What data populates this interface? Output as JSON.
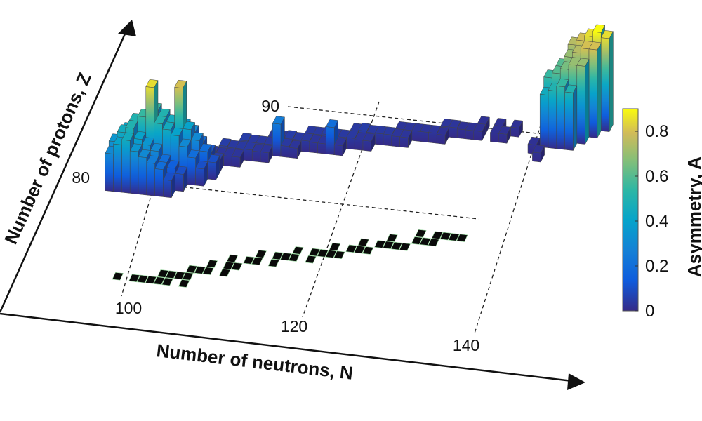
{
  "chart_data": {
    "type": "bar3d",
    "xlabel": "Number of neutrons, N",
    "ylabel": "Number of protons, Z",
    "zlabel": "Asymmetry, A",
    "x_ticks": [
      100,
      120,
      140
    ],
    "y_ticks": [
      80,
      90
    ],
    "colorbar": {
      "label": "Asymmetry, A",
      "ticks": [
        "0",
        "0.2",
        "0.4",
        "0.6",
        "0.8"
      ],
      "range": [
        0,
        0.9
      ],
      "colormap": "parula"
    },
    "bars": [
      {
        "N": 99,
        "Z": 78,
        "A": 0.3
      },
      {
        "N": 100,
        "Z": 78,
        "A": 0.4
      },
      {
        "N": 101,
        "Z": 78,
        "A": 0.45
      },
      {
        "N": 102,
        "Z": 78,
        "A": 0.35
      },
      {
        "N": 103,
        "Z": 78,
        "A": 0.3
      },
      {
        "N": 104,
        "Z": 78,
        "A": 0.25
      },
      {
        "N": 105,
        "Z": 78,
        "A": 0.2
      },
      {
        "N": 106,
        "Z": 78,
        "A": 0.1
      },
      {
        "N": 99,
        "Z": 79,
        "A": 0.35
      },
      {
        "N": 100,
        "Z": 79,
        "A": 0.45
      },
      {
        "N": 101,
        "Z": 79,
        "A": 0.5
      },
      {
        "N": 102,
        "Z": 79,
        "A": 0.4
      },
      {
        "N": 103,
        "Z": 79,
        "A": 0.35
      },
      {
        "N": 104,
        "Z": 79,
        "A": 0.3
      },
      {
        "N": 105,
        "Z": 79,
        "A": 0.2
      },
      {
        "N": 106,
        "Z": 79,
        "A": 0.15
      },
      {
        "N": 107,
        "Z": 79,
        "A": 0.1
      },
      {
        "N": 100,
        "Z": 80,
        "A": 0.4
      },
      {
        "N": 101,
        "Z": 80,
        "A": 0.5
      },
      {
        "N": 102,
        "Z": 80,
        "A": 0.55
      },
      {
        "N": 103,
        "Z": 80,
        "A": 0.85
      },
      {
        "N": 104,
        "Z": 80,
        "A": 0.5
      },
      {
        "N": 105,
        "Z": 80,
        "A": 0.45
      },
      {
        "N": 106,
        "Z": 80,
        "A": 0.4
      },
      {
        "N": 107,
        "Z": 80,
        "A": 0.3
      },
      {
        "N": 108,
        "Z": 80,
        "A": 0.2
      },
      {
        "N": 109,
        "Z": 80,
        "A": 0.1
      },
      {
        "N": 102,
        "Z": 81,
        "A": 0.45
      },
      {
        "N": 103,
        "Z": 81,
        "A": 0.55
      },
      {
        "N": 104,
        "Z": 81,
        "A": 0.5
      },
      {
        "N": 105,
        "Z": 81,
        "A": 0.45
      },
      {
        "N": 106,
        "Z": 81,
        "A": 0.8
      },
      {
        "N": 107,
        "Z": 81,
        "A": 0.4
      },
      {
        "N": 108,
        "Z": 81,
        "A": 0.3
      },
      {
        "N": 109,
        "Z": 81,
        "A": 0.2
      },
      {
        "N": 110,
        "Z": 81,
        "A": 0.1
      },
      {
        "N": 104,
        "Z": 82,
        "A": 0.35
      },
      {
        "N": 105,
        "Z": 82,
        "A": 0.3
      },
      {
        "N": 106,
        "Z": 82,
        "A": 0.35
      },
      {
        "N": 107,
        "Z": 82,
        "A": 0.3
      },
      {
        "N": 108,
        "Z": 82,
        "A": 0.2
      },
      {
        "N": 109,
        "Z": 82,
        "A": 0.12
      },
      {
        "N": 110,
        "Z": 82,
        "A": 0.05
      },
      {
        "N": 108,
        "Z": 83,
        "A": 0.04
      },
      {
        "N": 109,
        "Z": 83,
        "A": 0.04
      },
      {
        "N": 110,
        "Z": 83,
        "A": 0.03
      },
      {
        "N": 111,
        "Z": 83,
        "A": 0.03
      },
      {
        "N": 112,
        "Z": 83,
        "A": 0.03
      },
      {
        "N": 110,
        "Z": 84,
        "A": 0.05
      },
      {
        "N": 111,
        "Z": 84,
        "A": 0.04
      },
      {
        "N": 112,
        "Z": 84,
        "A": 0.04
      },
      {
        "N": 113,
        "Z": 84,
        "A": 0.04
      },
      {
        "N": 114,
        "Z": 84,
        "A": 0.03
      },
      {
        "N": 115,
        "Z": 84,
        "A": 0.03
      },
      {
        "N": 112,
        "Z": 85,
        "A": 0.05
      },
      {
        "N": 113,
        "Z": 85,
        "A": 0.04
      },
      {
        "N": 114,
        "Z": 85,
        "A": 0.04
      },
      {
        "N": 115,
        "Z": 85,
        "A": 0.04
      },
      {
        "N": 116,
        "Z": 85,
        "A": 0.25
      },
      {
        "N": 117,
        "Z": 85,
        "A": 0.04
      },
      {
        "N": 118,
        "Z": 85,
        "A": 0.03
      },
      {
        "N": 115,
        "Z": 86,
        "A": 0.04
      },
      {
        "N": 116,
        "Z": 86,
        "A": 0.04
      },
      {
        "N": 117,
        "Z": 86,
        "A": 0.05
      },
      {
        "N": 118,
        "Z": 86,
        "A": 0.04
      },
      {
        "N": 119,
        "Z": 86,
        "A": 0.04
      },
      {
        "N": 120,
        "Z": 86,
        "A": 0.03
      },
      {
        "N": 121,
        "Z": 86,
        "A": 0.03
      },
      {
        "N": 122,
        "Z": 86,
        "A": 0.2
      },
      {
        "N": 123,
        "Z": 86,
        "A": 0.03
      },
      {
        "N": 119,
        "Z": 87,
        "A": 0.04
      },
      {
        "N": 120,
        "Z": 87,
        "A": 0.04
      },
      {
        "N": 121,
        "Z": 87,
        "A": 0.05
      },
      {
        "N": 122,
        "Z": 87,
        "A": 0.04
      },
      {
        "N": 123,
        "Z": 87,
        "A": 0.04
      },
      {
        "N": 124,
        "Z": 87,
        "A": 0.04
      },
      {
        "N": 125,
        "Z": 87,
        "A": 0.03
      },
      {
        "N": 126,
        "Z": 87,
        "A": 0.03
      },
      {
        "N": 124,
        "Z": 88,
        "A": 0.04
      },
      {
        "N": 125,
        "Z": 88,
        "A": 0.05
      },
      {
        "N": 126,
        "Z": 88,
        "A": 0.04
      },
      {
        "N": 127,
        "Z": 88,
        "A": 0.04
      },
      {
        "N": 128,
        "Z": 88,
        "A": 0.04
      },
      {
        "N": 129,
        "Z": 88,
        "A": 0.03
      },
      {
        "N": 130,
        "Z": 88,
        "A": 0.03
      },
      {
        "N": 129,
        "Z": 89,
        "A": 0.03
      },
      {
        "N": 130,
        "Z": 89,
        "A": 0.03
      },
      {
        "N": 131,
        "Z": 89,
        "A": 0.03
      },
      {
        "N": 132,
        "Z": 89,
        "A": 0.03
      },
      {
        "N": 133,
        "Z": 89,
        "A": 0.03
      },
      {
        "N": 134,
        "Z": 89,
        "A": 0.02
      },
      {
        "N": 134,
        "Z": 90,
        "A": 0.03
      },
      {
        "N": 135,
        "Z": 90,
        "A": 0.03
      },
      {
        "N": 136,
        "Z": 90,
        "A": 0.02
      },
      {
        "N": 137,
        "Z": 90,
        "A": 0.02
      },
      {
        "N": 138,
        "Z": 90,
        "A": 0.02
      },
      {
        "N": 140,
        "Z": 90,
        "A": 0.02
      },
      {
        "N": 141,
        "Z": 90,
        "A": 0.02
      },
      {
        "N": 138,
        "Z": 91,
        "A": 0.02
      },
      {
        "N": 140,
        "Z": 91,
        "A": 0.02
      },
      {
        "N": 142,
        "Z": 91,
        "A": 0.02
      },
      {
        "N": 146,
        "Z": 90,
        "A": 0.45
      },
      {
        "N": 147,
        "Z": 90,
        "A": 0.5
      },
      {
        "N": 148,
        "Z": 90,
        "A": 0.55
      },
      {
        "N": 149,
        "Z": 90,
        "A": 0.5
      },
      {
        "N": 146,
        "Z": 91,
        "A": 0.55
      },
      {
        "N": 147,
        "Z": 91,
        "A": 0.6
      },
      {
        "N": 148,
        "Z": 91,
        "A": 0.65
      },
      {
        "N": 149,
        "Z": 91,
        "A": 0.7
      },
      {
        "N": 150,
        "Z": 91,
        "A": 0.7
      },
      {
        "N": 147,
        "Z": 92,
        "A": 0.6
      },
      {
        "N": 148,
        "Z": 92,
        "A": 0.7
      },
      {
        "N": 149,
        "Z": 92,
        "A": 0.75
      },
      {
        "N": 150,
        "Z": 92,
        "A": 0.8
      },
      {
        "N": 151,
        "Z": 92,
        "A": 0.8
      },
      {
        "N": 148,
        "Z": 93,
        "A": 0.75
      },
      {
        "N": 149,
        "Z": 93,
        "A": 0.8
      },
      {
        "N": 150,
        "Z": 93,
        "A": 0.85
      },
      {
        "N": 151,
        "Z": 93,
        "A": 0.9
      },
      {
        "N": 152,
        "Z": 93,
        "A": 0.85
      },
      {
        "N": 145,
        "Z": 89,
        "A": 0.02
      },
      {
        "N": 146,
        "Z": 88,
        "A": 0.02
      }
    ],
    "floor_cells": [
      [
        98,
        78
      ],
      [
        100,
        78
      ],
      [
        101,
        78
      ],
      [
        102,
        78
      ],
      [
        103,
        78
      ],
      [
        104,
        78
      ],
      [
        106,
        78
      ],
      [
        103,
        79
      ],
      [
        104,
        79
      ],
      [
        105,
        79
      ],
      [
        106,
        79
      ],
      [
        106,
        80
      ],
      [
        107,
        80
      ],
      [
        108,
        80
      ],
      [
        110,
        80
      ],
      [
        108,
        81
      ],
      [
        110,
        81
      ],
      [
        111,
        81
      ],
      [
        110,
        82
      ],
      [
        112,
        82
      ],
      [
        113,
        82
      ],
      [
        115,
        82
      ],
      [
        113,
        83
      ],
      [
        115,
        83
      ],
      [
        116,
        83
      ],
      [
        117,
        83
      ],
      [
        119,
        83
      ],
      [
        117,
        84
      ],
      [
        119,
        84
      ],
      [
        120,
        84
      ],
      [
        121,
        84
      ],
      [
        122,
        84
      ],
      [
        121,
        85
      ],
      [
        123,
        85
      ],
      [
        124,
        85
      ],
      [
        125,
        85
      ],
      [
        124,
        86
      ],
      [
        126,
        86
      ],
      [
        127,
        86
      ],
      [
        128,
        86
      ],
      [
        129,
        86
      ],
      [
        127,
        87
      ],
      [
        130,
        87
      ],
      [
        131,
        87
      ],
      [
        132,
        87
      ],
      [
        130,
        88
      ],
      [
        132,
        88
      ],
      [
        133,
        88
      ],
      [
        134,
        88
      ],
      [
        135,
        88
      ]
    ]
  }
}
